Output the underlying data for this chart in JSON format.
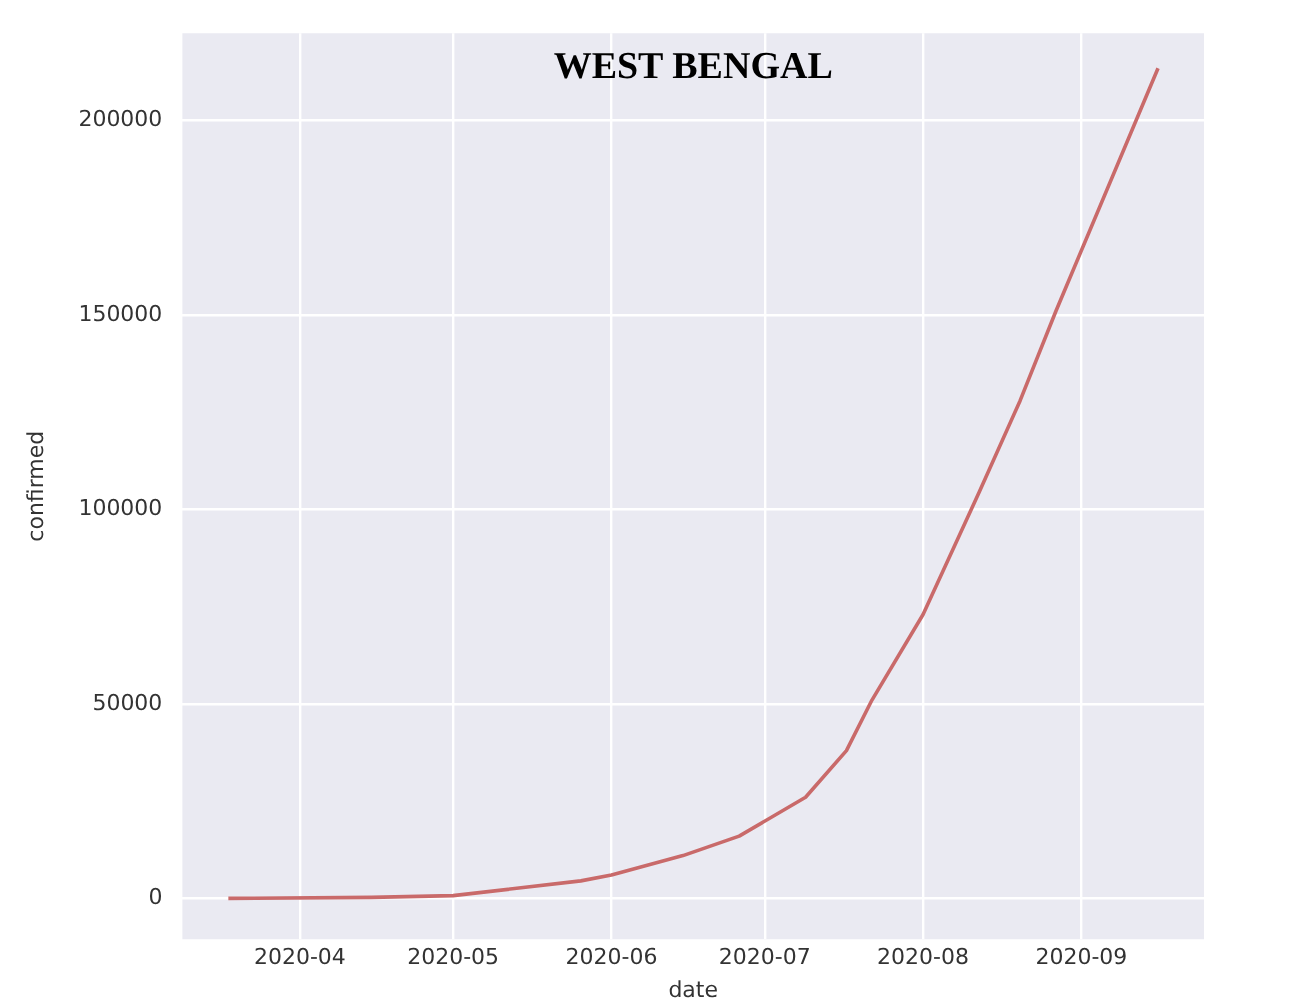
{
  "chart_data": {
    "type": "line",
    "title": "WEST BENGAL",
    "xlabel": "date",
    "ylabel": "confirmed",
    "x": [
      "2020-03-18",
      "2020-04-15",
      "2020-05-01",
      "2020-05-26",
      "2020-06-01",
      "2020-06-15",
      "2020-06-26",
      "2020-07-09",
      "2020-07-17",
      "2020-07-22",
      "2020-08-01",
      "2020-08-12",
      "2020-08-20",
      "2020-08-27",
      "2020-09-16"
    ],
    "series": [
      {
        "color": "#c96a6a",
        "values": [
          0,
          250,
          700,
          4500,
          6000,
          11000,
          16000,
          26000,
          38000,
          51000,
          73000,
          104500,
          128000,
          151000,
          213500
        ]
      }
    ],
    "xlim": [
      "2020-03-09",
      "2020-09-25"
    ],
    "xticks": [
      {
        "value": "2020-04",
        "label": "2020-04"
      },
      {
        "value": "2020-05",
        "label": "2020-05"
      },
      {
        "value": "2020-06",
        "label": "2020-06"
      },
      {
        "value": "2020-07",
        "label": "2020-07"
      },
      {
        "value": "2020-08",
        "label": "2020-08"
      },
      {
        "value": "2020-09",
        "label": "2020-09"
      }
    ],
    "ylim": [
      -10500,
      222500
    ],
    "yticks": [
      0,
      50000,
      100000,
      150000,
      200000
    ],
    "grid": true,
    "legend": false,
    "marker": "none",
    "line_style": "solid"
  }
}
